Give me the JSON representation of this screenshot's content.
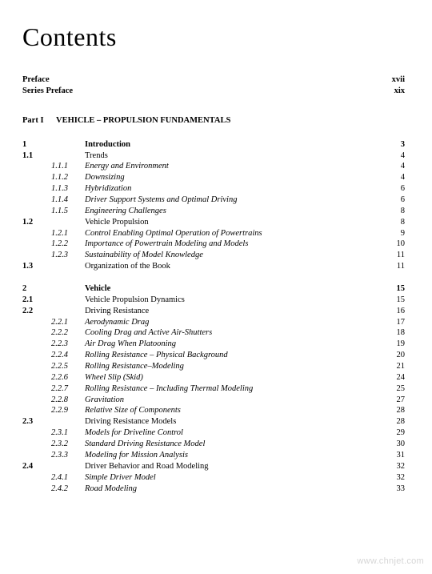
{
  "title": "Contents",
  "preface": [
    {
      "label": "Preface",
      "page": "xvii"
    },
    {
      "label": "Series Preface",
      "page": "xix"
    }
  ],
  "part": {
    "label": "Part I",
    "title": "VEHICLE – PROPULSION FUNDAMENTALS"
  },
  "toc": [
    {
      "num": "1",
      "sub": "",
      "text": "Introduction",
      "page": "3",
      "numBold": true,
      "textBold": true,
      "pageBold": true
    },
    {
      "num": "1.1",
      "sub": "",
      "text": "Trends",
      "page": "4"
    },
    {
      "num": "",
      "sub": "1.1.1",
      "text": "Energy and Environment",
      "page": "4",
      "italic": true
    },
    {
      "num": "",
      "sub": "1.1.2",
      "text": "Downsizing",
      "page": "4",
      "italic": true
    },
    {
      "num": "",
      "sub": "1.1.3",
      "text": "Hybridization",
      "page": "6",
      "italic": true
    },
    {
      "num": "",
      "sub": "1.1.4",
      "text": "Driver Support Systems and Optimal Driving",
      "page": "6",
      "italic": true
    },
    {
      "num": "",
      "sub": "1.1.5",
      "text": "Engineering Challenges",
      "page": "8",
      "italic": true
    },
    {
      "num": "1.2",
      "sub": "",
      "text": "Vehicle Propulsion",
      "page": "8"
    },
    {
      "num": "",
      "sub": "1.2.1",
      "text": "Control Enabling Optimal Operation of Powertrains",
      "page": "9",
      "italic": true
    },
    {
      "num": "",
      "sub": "1.2.2",
      "text": "Importance of Powertrain Modeling and Models",
      "page": "10",
      "italic": true
    },
    {
      "num": "",
      "sub": "1.2.3",
      "text": "Sustainability of Model Knowledge",
      "page": "11",
      "italic": true
    },
    {
      "num": "1.3",
      "sub": "",
      "text": "Organization of the Book",
      "page": "11"
    },
    {
      "gap": true
    },
    {
      "num": "2",
      "sub": "",
      "text": "Vehicle",
      "page": "15",
      "numBold": true,
      "textBold": true,
      "pageBold": true
    },
    {
      "num": "2.1",
      "sub": "",
      "text": "Vehicle Propulsion Dynamics",
      "page": "15"
    },
    {
      "num": "2.2",
      "sub": "",
      "text": "Driving Resistance",
      "page": "16"
    },
    {
      "num": "",
      "sub": "2.2.1",
      "text": "Aerodynamic Drag",
      "page": "17",
      "italic": true
    },
    {
      "num": "",
      "sub": "2.2.2",
      "text": "Cooling Drag and Active Air-Shutters",
      "page": "18",
      "italic": true
    },
    {
      "num": "",
      "sub": "2.2.3",
      "text": "Air Drag When Platooning",
      "page": "19",
      "italic": true
    },
    {
      "num": "",
      "sub": "2.2.4",
      "text": "Rolling Resistance – Physical Background",
      "page": "20",
      "italic": true
    },
    {
      "num": "",
      "sub": "2.2.5",
      "text": "Rolling Resistance–Modeling",
      "page": "21",
      "italic": true
    },
    {
      "num": "",
      "sub": "2.2.6",
      "text": "Wheel Slip (Skid)",
      "page": "24",
      "italic": true
    },
    {
      "num": "",
      "sub": "2.2.7",
      "text": "Rolling Resistance – Including Thermal Modeling",
      "page": "25",
      "italic": true
    },
    {
      "num": "",
      "sub": "2.2.8",
      "text": "Gravitation",
      "page": "27",
      "italic": true
    },
    {
      "num": "",
      "sub": "2.2.9",
      "text": "Relative Size of Components",
      "page": "28",
      "italic": true
    },
    {
      "num": "2.3",
      "sub": "",
      "text": "Driving Resistance Models",
      "page": "28"
    },
    {
      "num": "",
      "sub": "2.3.1",
      "text": "Models for Driveline Control",
      "page": "29",
      "italic": true
    },
    {
      "num": "",
      "sub": "2.3.2",
      "text": "Standard Driving Resistance Model",
      "page": "30",
      "italic": true
    },
    {
      "num": "",
      "sub": "2.3.3",
      "text": "Modeling for Mission Analysis",
      "page": "31",
      "italic": true
    },
    {
      "num": "2.4",
      "sub": "",
      "text": "Driver Behavior and Road Modeling",
      "page": "32"
    },
    {
      "num": "",
      "sub": "2.4.1",
      "text": "Simple Driver Model",
      "page": "32",
      "italic": true
    },
    {
      "num": "",
      "sub": "2.4.2",
      "text": "Road Modeling",
      "page": "33",
      "italic": true
    }
  ],
  "watermark": "www.chnjet.com"
}
